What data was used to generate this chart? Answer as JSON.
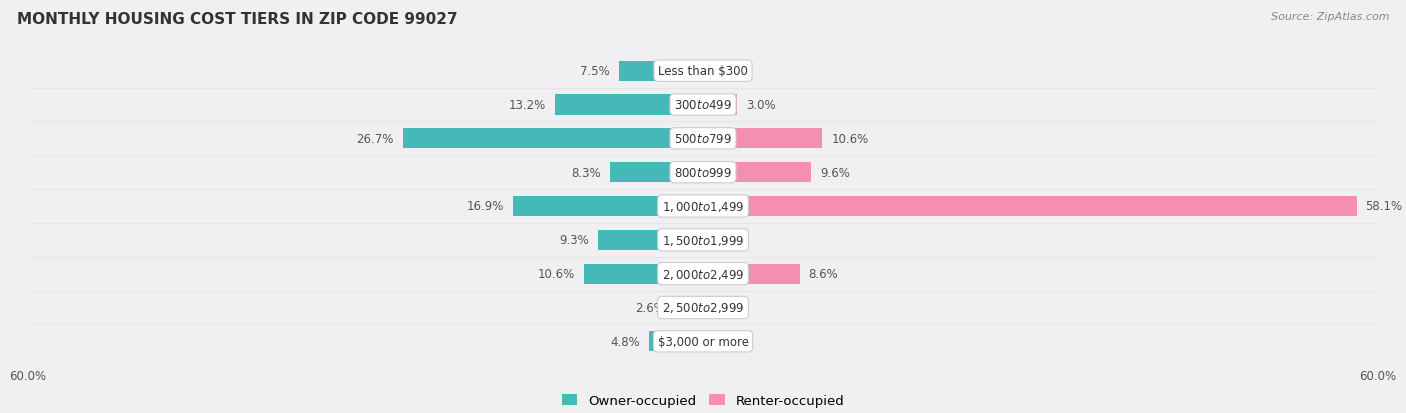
{
  "title": "Monthly Housing Cost Tiers in Zip Code 99027",
  "source": "Source: ZipAtlas.com",
  "categories": [
    "Less than $300",
    "$300 to $499",
    "$500 to $799",
    "$800 to $999",
    "$1,000 to $1,499",
    "$1,500 to $1,999",
    "$2,000 to $2,499",
    "$2,500 to $2,999",
    "$3,000 or more"
  ],
  "owner_values": [
    7.5,
    13.2,
    26.7,
    8.3,
    16.9,
    9.3,
    10.6,
    2.6,
    4.8
  ],
  "renter_values": [
    0.0,
    3.0,
    10.6,
    9.6,
    58.1,
    0.0,
    8.6,
    0.0,
    0.0
  ],
  "owner_color": "#45B8B8",
  "renter_color": "#F48FB1",
  "axis_max": 60.0,
  "bg_color": "#f0f0f0",
  "row_bg_even": "#f7f7f7",
  "row_bg_odd": "#e8e8e8",
  "row_bg_color": "#ebebeb",
  "title_fontsize": 11,
  "label_fontsize": 8.5,
  "tick_fontsize": 8.5,
  "legend_fontsize": 9.5,
  "source_fontsize": 8
}
